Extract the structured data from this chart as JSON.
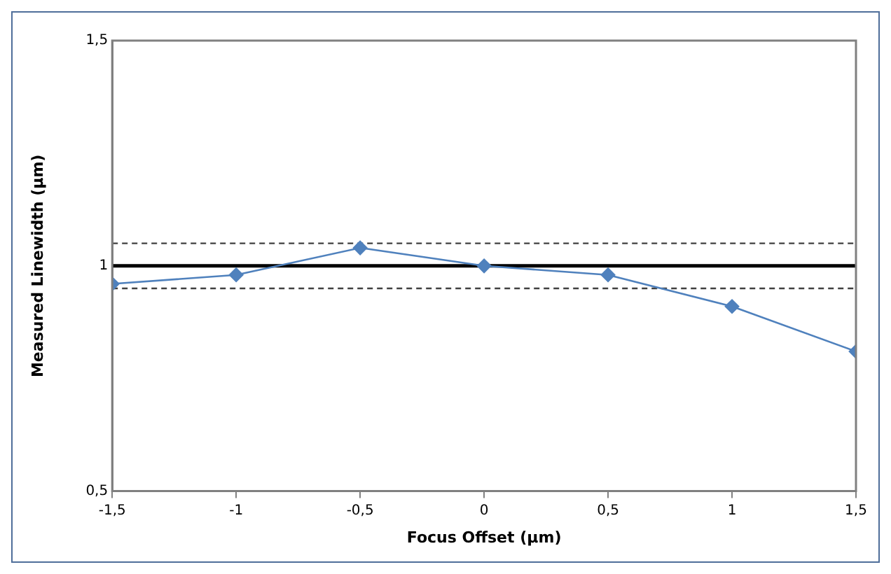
{
  "chart_data": {
    "type": "line",
    "xlabel": "Focus Offset (µm)",
    "ylabel": "Measured Linewidth (µm)",
    "x": [
      -1.5,
      -1,
      -0.5,
      0,
      0.5,
      1,
      1.5
    ],
    "series": [
      {
        "color": "#4f81bd",
        "values": [
          0.96,
          0.98,
          1.04,
          1.0,
          0.98,
          0.91,
          0.81
        ]
      }
    ],
    "xlim": [
      -1.5,
      1.5
    ],
    "xticks": [
      {
        "value": -1.5,
        "label": "-1,5"
      },
      -1,
      {
        "value": -0.5,
        "label": "-0,5"
      },
      0,
      {
        "value": 0.5,
        "label": "0,5"
      },
      1,
      {
        "value": 1.5,
        "label": "1,5"
      }
    ],
    "ylim": [
      0.5,
      1.5
    ],
    "yticks": [
      {
        "value": 0.5,
        "label": "0,5"
      },
      1,
      {
        "value": 1.5,
        "label": "1,5"
      }
    ],
    "ref_lines": [
      {
        "axis": "y",
        "value": 1,
        "color": "#000000",
        "line_style": "solid"
      },
      {
        "axis": "y",
        "value": 1.05,
        "color": "#404040",
        "line_style": "dashed"
      },
      {
        "axis": "y",
        "value": 0.95,
        "color": "#404040",
        "line_style": "dashed"
      }
    ],
    "grid": false,
    "legend": false,
    "marker": "diamond",
    "line_style": "solid"
  }
}
